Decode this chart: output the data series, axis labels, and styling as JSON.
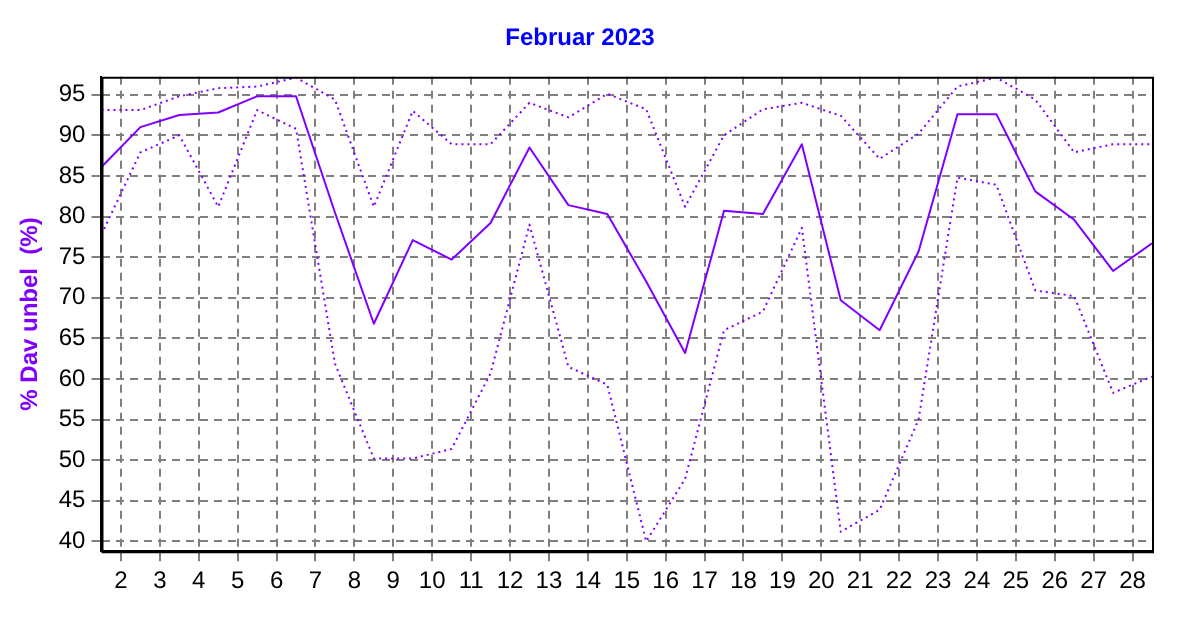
{
  "chart_data": {
    "type": "line",
    "title": "Februar 2023",
    "ylabel": "% Dav unbel  (%)",
    "x": [
      1.5,
      2.5,
      3.5,
      4.5,
      5.5,
      6.5,
      7.5,
      8.5,
      9.5,
      10.5,
      11.5,
      12.5,
      13.5,
      14.5,
      15.5,
      16.5,
      17.5,
      18.5,
      19.5,
      20.5,
      21.5,
      22.5,
      23.5,
      24.5,
      25.5,
      26.5,
      27.5,
      28.5
    ],
    "series": [
      {
        "color": "#8000ff",
        "line_style": "solid",
        "values": [
          86.1,
          91,
          92.5,
          92.8,
          94.8,
          94.8,
          80.5,
          66.8,
          77.1,
          74.7,
          79.2,
          88.5,
          81.4,
          80.3,
          72,
          63.2,
          80.7,
          80.3,
          88.9,
          69.7,
          66,
          75.7,
          92.6,
          92.6,
          83.1,
          79.6,
          73.3,
          76.7
        ]
      },
      {
        "color": "#8000ff",
        "line_style": "dotted",
        "values": [
          93.1,
          93.1,
          94.8,
          95.8,
          96,
          97.1,
          94.4,
          81.2,
          93,
          88.9,
          88.9,
          94,
          92.2,
          95.1,
          93.2,
          81.2,
          90,
          93.2,
          94,
          92.4,
          87.1,
          90.2,
          96,
          97.1,
          94.4,
          87.9,
          88.9,
          88.9
        ]
      },
      {
        "color": "#8000ff",
        "line_style": "dotted",
        "values": [
          77.8,
          87.9,
          90,
          81.2,
          93.1,
          90.8,
          61.9,
          50.2,
          50.2,
          51.4,
          60.7,
          79,
          61.5,
          59.3,
          40,
          47.7,
          66,
          68.3,
          78.6,
          41.2,
          43.9,
          55,
          84.8,
          83.9,
          70.9,
          70.2,
          58.3,
          60.3
        ]
      }
    ],
    "xlim": [
      1.5,
      28.5
    ],
    "xticks": [
      2,
      3,
      4,
      5,
      6,
      7,
      8,
      9,
      10,
      11,
      12,
      13,
      14,
      15,
      16,
      17,
      18,
      19,
      20,
      21,
      22,
      23,
      24,
      25,
      26,
      27,
      28
    ],
    "ylim": [
      38.8,
      97.2
    ],
    "yticks": [
      40,
      45,
      50,
      55,
      60,
      65,
      70,
      75,
      80,
      85,
      90,
      95
    ],
    "grid": true,
    "legend": false,
    "marker": "none"
  }
}
